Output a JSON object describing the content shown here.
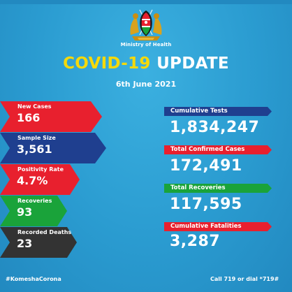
{
  "header": {
    "ministry": "Ministry of Health",
    "title_part1": "COVID-19",
    "title_part2": "UPDATE",
    "date": "6th June 2021"
  },
  "left_stats": [
    {
      "label": "New Cases",
      "value": "166",
      "color": "#e8202e"
    },
    {
      "label": "Sample Size",
      "value": "3,561",
      "color": "#1f3f8f"
    },
    {
      "label": "Positivity Rate",
      "value": "4.7%",
      "color": "#e8202e"
    },
    {
      "label": "Recoveries",
      "value": "93",
      "color": "#1aa33a"
    },
    {
      "label": "Recorded Deaths",
      "value": "23",
      "color": "#333333"
    }
  ],
  "right_stats": [
    {
      "label": "Cumulative Tests",
      "value": "1,834,247",
      "color": "#1f3f8f"
    },
    {
      "label": "Total Confirmed Cases",
      "value": "172,491",
      "color": "#e8202e"
    },
    {
      "label": "Total Recoveries",
      "value": "117,595",
      "color": "#1aa33a"
    },
    {
      "label": "Cumulative Fatalities",
      "value": "3,287",
      "color": "#e8202e"
    }
  ],
  "footer": {
    "hashtag": "#KomeshaCorona",
    "call": "Call 719 or dial *719#"
  },
  "colors": {
    "background": "#2e9fd2",
    "title_accent": "#f5d90a"
  },
  "icons": [
    "kenya-coat-of-arms-icon"
  ]
}
